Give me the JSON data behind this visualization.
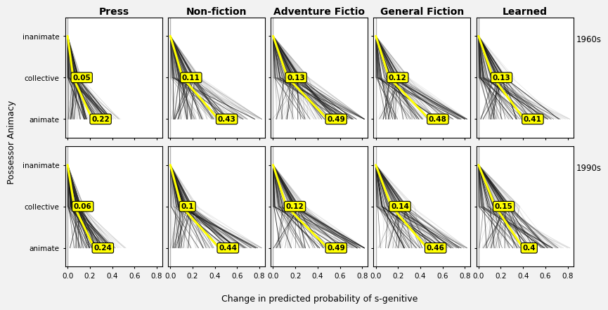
{
  "genres": [
    "Press",
    "Non-fiction",
    "Adventure Fictio",
    "General Fiction",
    "Learned"
  ],
  "times": [
    "1960s",
    "1990s"
  ],
  "ylabels": [
    "inanimate",
    "collective",
    "animate"
  ],
  "xlabel": "Change in predicted probability of s-genitive",
  "ylabel": "Possessor Animacy",
  "annotations": {
    "1960s": {
      "Press": {
        "collective": 0.05,
        "animate": 0.22
      },
      "Non-fiction": {
        "collective": 0.11,
        "animate": 0.43
      },
      "Adventure Fictio": {
        "collective": 0.13,
        "animate": 0.49
      },
      "General Fiction": {
        "collective": 0.12,
        "animate": 0.48
      },
      "Learned": {
        "collective": 0.13,
        "animate": 0.41
      }
    },
    "1990s": {
      "Press": {
        "collective": 0.06,
        "animate": 0.24
      },
      "Non-fiction": {
        "collective": 0.1,
        "animate": 0.44
      },
      "Adventure Fictio": {
        "collective": 0.12,
        "animate": 0.49
      },
      "General Fiction": {
        "collective": 0.14,
        "animate": 0.46
      },
      "Learned": {
        "collective": 0.15,
        "animate": 0.4
      }
    }
  },
  "bg_color": "#f2f2f2",
  "panel_bg": "#ffffff",
  "mean_color": "#ffff00",
  "vline_color": "#b0b0b0",
  "n_ice": 120,
  "xticks": [
    0.0,
    0.2,
    0.4,
    0.6,
    0.8
  ],
  "xlim": [
    -0.02,
    0.85
  ],
  "ylim": [
    -0.45,
    2.45
  ]
}
